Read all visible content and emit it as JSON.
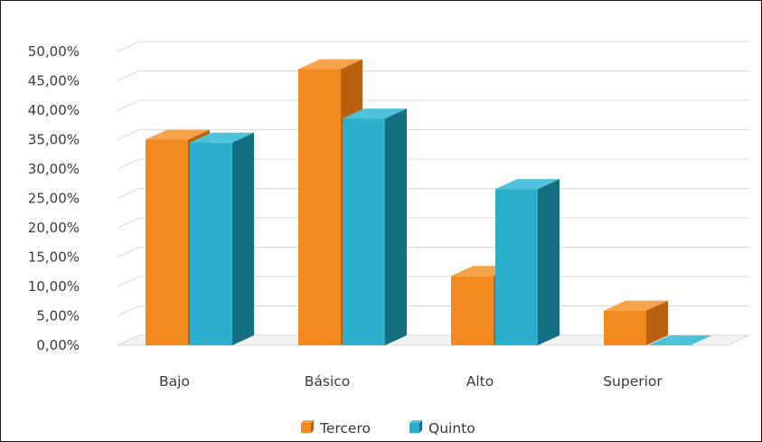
{
  "chart_data": {
    "type": "bar",
    "title": "",
    "xlabel": "",
    "ylabel": "",
    "categories": [
      "Bajo",
      "Básico",
      "Alto",
      "Superior"
    ],
    "series": [
      {
        "name": "Tercero",
        "values": [
          35.0,
          47.0,
          11.8,
          5.9
        ],
        "colors": {
          "front": "#f28a1f",
          "side": "#b9610f",
          "top": "#f6a34c"
        }
      },
      {
        "name": "Quinto",
        "values": [
          34.5,
          38.6,
          26.6,
          0.0
        ],
        "colors": {
          "front": "#2ab0cc",
          "side": "#156f83",
          "top": "#4ec2db"
        }
      }
    ],
    "ylim": [
      0,
      50
    ],
    "ytick_step": 5,
    "ytick_labels": [
      "0,00%",
      "5,00%",
      "10,00%",
      "15,00%",
      "20,00%",
      "25,00%",
      "30,00%",
      "35,00%",
      "40,00%",
      "45,00%",
      "50,00%"
    ],
    "grid": true,
    "legend_position": "bottom",
    "three_d": true,
    "gridline_color": "#d9d9d9",
    "text_color": "#3a3a3a"
  }
}
